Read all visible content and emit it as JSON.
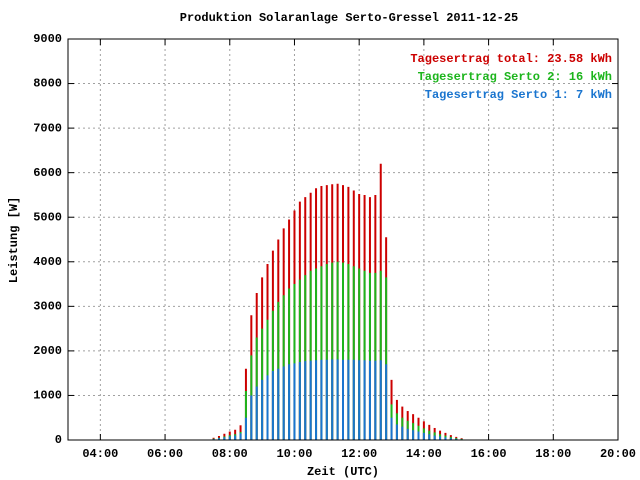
{
  "chart_data": {
    "type": "impulse",
    "title": "Produktion Solaranlage Serto-Gressel 2011-12-25",
    "x_label": "Zeit (UTC)",
    "y_label": "Leistung [W]",
    "xlim": [
      "03:00",
      "20:00"
    ],
    "xticks": [
      "04:00",
      "06:00",
      "08:00",
      "10:00",
      "12:00",
      "14:00",
      "16:00",
      "18:00",
      "20:00"
    ],
    "ylim": [
      0,
      9000
    ],
    "yticks": [
      0,
      1000,
      2000,
      3000,
      4000,
      5000,
      6000,
      7000,
      8000,
      9000
    ],
    "grid": true,
    "legend": "upper right",
    "x": [
      "07:30",
      "07:40",
      "07:50",
      "08:00",
      "08:10",
      "08:20",
      "08:30",
      "08:40",
      "08:50",
      "09:00",
      "09:10",
      "09:20",
      "09:30",
      "09:40",
      "09:50",
      "10:00",
      "10:10",
      "10:20",
      "10:30",
      "10:40",
      "10:50",
      "11:00",
      "11:10",
      "11:20",
      "11:30",
      "11:40",
      "11:50",
      "12:00",
      "12:10",
      "12:20",
      "12:30",
      "12:40",
      "12:50",
      "13:00",
      "13:10",
      "13:20",
      "13:30",
      "13:40",
      "13:50",
      "14:00",
      "14:10",
      "14:20",
      "14:30",
      "14:40",
      "14:50",
      "15:00",
      "15:10"
    ],
    "series": [
      {
        "name": "Tagesertrag total: 23.58 kWh",
        "color": "#cc0000",
        "values": [
          50,
          90,
          140,
          190,
          230,
          330,
          1600,
          2800,
          3300,
          3650,
          3950,
          4250,
          4500,
          4750,
          4950,
          5150,
          5350,
          5450,
          5550,
          5650,
          5700,
          5720,
          5740,
          5750,
          5720,
          5680,
          5600,
          5520,
          5500,
          5450,
          5500,
          6200,
          4550,
          1350,
          900,
          750,
          650,
          580,
          500,
          420,
          340,
          270,
          210,
          160,
          110,
          70,
          40
        ]
      },
      {
        "name": "Tagesertrag Serto 2: 16 kWh",
        "color": "#1cb51c",
        "values": [
          30,
          50,
          80,
          110,
          130,
          180,
          1100,
          1900,
          2300,
          2500,
          2700,
          2900,
          3100,
          3250,
          3400,
          3500,
          3600,
          3700,
          3800,
          3850,
          3900,
          3950,
          3980,
          4000,
          3980,
          3950,
          3900,
          3850,
          3800,
          3750,
          3750,
          3800,
          3650,
          800,
          600,
          500,
          430,
          380,
          320,
          260,
          210,
          170,
          130,
          100,
          70,
          45,
          25
        ]
      },
      {
        "name": "Tagesertrag Serto 1: 7 kWh",
        "color": "#1a75cf",
        "values": [
          20,
          40,
          60,
          80,
          100,
          150,
          500,
          1000,
          1200,
          1350,
          1450,
          1550,
          1600,
          1650,
          1700,
          1720,
          1750,
          1770,
          1780,
          1790,
          1800,
          1800,
          1810,
          1810,
          1800,
          1800,
          1800,
          1790,
          1790,
          1780,
          1780,
          1790,
          1700,
          500,
          350,
          300,
          250,
          220,
          190,
          160,
          130,
          100,
          80,
          60,
          40,
          25,
          15
        ]
      }
    ]
  }
}
